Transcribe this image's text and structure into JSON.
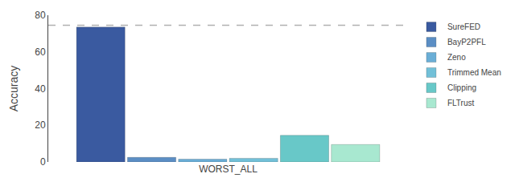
{
  "chart_data": {
    "type": "bar",
    "categories": [
      "WORST_ALL"
    ],
    "series": [
      {
        "name": "SureFED",
        "color": "#3a5aa0",
        "values": [
          73.5
        ]
      },
      {
        "name": "BayP2PFL",
        "color": "#5b8ec4",
        "values": [
          2.5
        ]
      },
      {
        "name": "Zeno",
        "color": "#6aaed6",
        "values": [
          1.5
        ]
      },
      {
        "name": "Trimmed Mean",
        "color": "#72c0d8",
        "values": [
          2.0
        ]
      },
      {
        "name": "Clipping",
        "color": "#68c8c8",
        "values": [
          14.5
        ]
      },
      {
        "name": "FLTrust",
        "color": "#a8e8d0",
        "values": [
          9.5
        ]
      }
    ],
    "hlines": [
      {
        "y": 74.5,
        "color": "#b0b0b0",
        "line_style": "dashed"
      }
    ],
    "ylabel": "Accuracy",
    "ylim": [
      0,
      80
    ],
    "yticks": [
      0,
      20,
      40,
      60,
      80
    ],
    "grid": false,
    "legend": "upper right"
  }
}
